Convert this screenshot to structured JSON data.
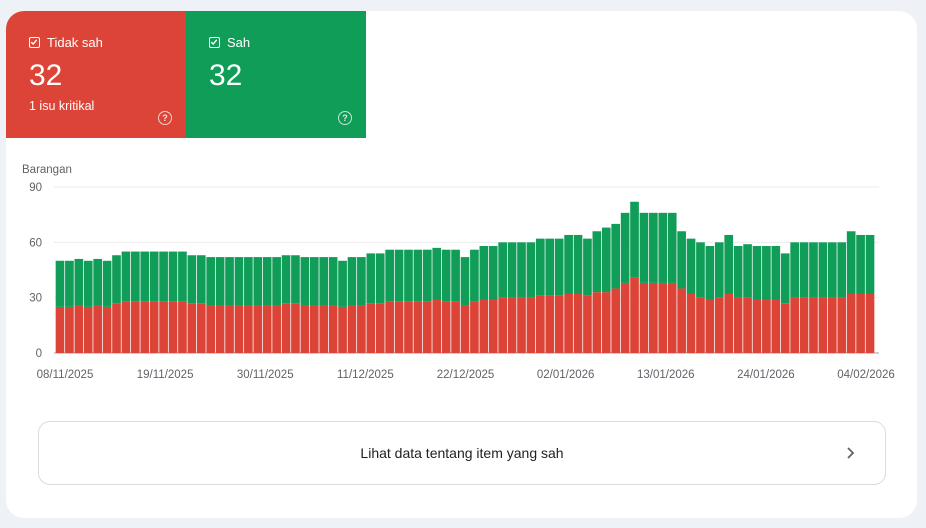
{
  "tiles": {
    "invalid": {
      "label": "Tidak sah",
      "count": "32",
      "sub": "1 isu kritikal",
      "color": "#db4437"
    },
    "valid": {
      "label": "Sah",
      "count": "32",
      "color": "#0f9d58"
    }
  },
  "chart_data": {
    "type": "bar",
    "stacked": true,
    "ylabel": "Barangan",
    "ylim": [
      0,
      90
    ],
    "yticks": [
      "0",
      "30",
      "60",
      "90"
    ],
    "xtick_labels": [
      "08/11/2025",
      "19/11/2025",
      "30/11/2025",
      "11/12/2025",
      "22/12/2025",
      "02/01/2026",
      "13/01/2026",
      "24/01/2026",
      "04/02/2026"
    ],
    "grid": true,
    "series": [
      {
        "color": "#db4437",
        "values": [
          25,
          25,
          26,
          25,
          26,
          25,
          27,
          28,
          28,
          28,
          28,
          28,
          28,
          28,
          27,
          27,
          26,
          26,
          26,
          26,
          26,
          26,
          26,
          26,
          27,
          27,
          26,
          26,
          26,
          26,
          25,
          26,
          26,
          27,
          27,
          28,
          28,
          28,
          28,
          28,
          29,
          28,
          28,
          26,
          28,
          29,
          29,
          30,
          30,
          30,
          30,
          31,
          31,
          31,
          32,
          32,
          31,
          33,
          33,
          35,
          38,
          41,
          38,
          38,
          38,
          38,
          35,
          32,
          30,
          29,
          30,
          32,
          30,
          30,
          29,
          29,
          29,
          27,
          30,
          30,
          30,
          30,
          30,
          30,
          32,
          32,
          32
        ]
      },
      {
        "color": "#0f9d58",
        "values": [
          25,
          25,
          25,
          25,
          25,
          25,
          26,
          27,
          27,
          27,
          27,
          27,
          27,
          27,
          26,
          26,
          26,
          26,
          26,
          26,
          26,
          26,
          26,
          26,
          26,
          26,
          26,
          26,
          26,
          26,
          25,
          26,
          26,
          27,
          27,
          28,
          28,
          28,
          28,
          28,
          28,
          28,
          28,
          26,
          28,
          29,
          29,
          30,
          30,
          30,
          30,
          31,
          31,
          31,
          32,
          32,
          31,
          33,
          35,
          35,
          38,
          41,
          38,
          38,
          38,
          38,
          31,
          30,
          30,
          29,
          30,
          32,
          28,
          29,
          29,
          29,
          29,
          27,
          30,
          30,
          30,
          30,
          30,
          30,
          34,
          32,
          32
        ]
      }
    ]
  },
  "link": {
    "label": "Lihat data tentang item yang sah"
  }
}
